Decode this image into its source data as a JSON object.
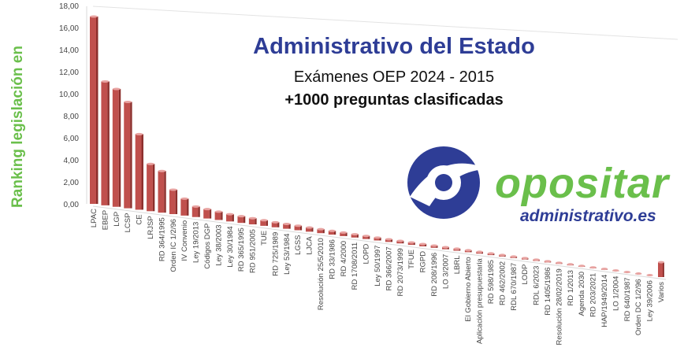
{
  "chart_data": {
    "type": "bar",
    "title": "Administrativo del Estado",
    "subtitle": "Exámenes OEP 2024 - 2015",
    "subtitle2": "+1000 preguntas clasificadas",
    "ylabel": "Ranking legislación en",
    "xlabel": "",
    "ylim": [
      0,
      18
    ],
    "yticks": [
      "0,00",
      "2,00",
      "4,00",
      "6,00",
      "8,00",
      "10,00",
      "12,00",
      "14,00",
      "16,00",
      "18,00"
    ],
    "grid": false,
    "bar_color": "#c0504d",
    "categories": [
      "LPAC",
      "EBEP",
      "LGP",
      "LCSP",
      "CE",
      "LRJSP",
      "RD 364/1995",
      "Orden IC 1/2/96",
      "IV Convenio",
      "Ley 19/2013",
      "Códigos DGP",
      "Ley 38/2003",
      "Ley 30/1984",
      "RD 365/1995",
      "RD 951/2005",
      "TUE",
      "RD 725/1989",
      "Ley 53/1984",
      "LGSS",
      "LJCA",
      "Resolución 25/5/2010",
      "RD 33/1986",
      "RD 4/2000",
      "RD 1708/2011",
      "LOPD",
      "Ley 50/1997",
      "RD 366/2007",
      "RD 2073/1999",
      "TFUE",
      "RGPD",
      "RD 208/1996",
      "LO 3/2007",
      "LBRL",
      "El Gobierno Abierto",
      "Aplicación presupuestaria",
      "RD 598/1985",
      "RD 462/2002",
      "RDL 670/1987",
      "LODP",
      "RDL 6/2023",
      "RD 1405/1986",
      "Resolución 28/02/2019",
      "RD 1/2013",
      "Agenda 2030",
      "RD 203/2021",
      "HAP/1949/2014",
      "LO 1/2004",
      "RD 640/1987",
      "Orden DC 1/2/96",
      "Ley 39/2006",
      "Varios"
    ],
    "values": [
      17.0,
      11.3,
      10.8,
      9.8,
      7.0,
      4.4,
      3.9,
      2.3,
      1.6,
      1.0,
      0.9,
      0.8,
      0.7,
      0.65,
      0.6,
      0.55,
      0.5,
      0.48,
      0.45,
      0.42,
      0.4,
      0.38,
      0.36,
      0.34,
      0.32,
      0.3,
      0.28,
      0.27,
      0.26,
      0.25,
      0.24,
      0.23,
      0.22,
      0.21,
      0.2,
      0.19,
      0.18,
      0.17,
      0.16,
      0.15,
      0.14,
      0.13,
      0.12,
      0.11,
      0.1,
      0.1,
      0.09,
      0.08,
      0.07,
      0.06,
      1.8
    ]
  },
  "logo": {
    "name": "opositar",
    "domain": "administrativo.es",
    "green": "#6abf4b",
    "blue": "#2e3d96"
  }
}
